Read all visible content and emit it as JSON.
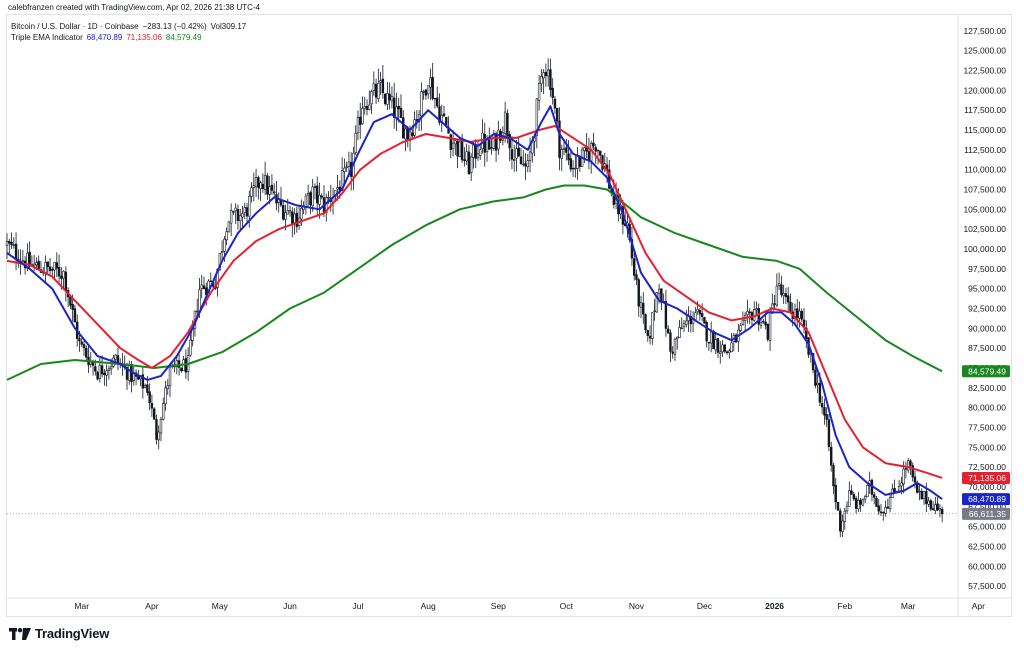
{
  "creator_text": "calebfranzen created with TradingView.com, Apr 02, 2026 21:38 UTC-4",
  "legend": {
    "symbol": "Bitcoin / U.S. Dollar · 1D · Coinbase",
    "change": "−283.13 (−0.42%)",
    "volume": "Vol309.17",
    "indicator_name": "Triple EMA Indicator",
    "ema_fast": "68,470.89",
    "ema_mid": "71,135.06",
    "ema_slow": "84,579.49"
  },
  "brand": {
    "name": "TradingView"
  },
  "colors": {
    "ema_fast": "#1b24c7",
    "ema_mid": "#e5202f",
    "ema_slow": "#17871e",
    "candle": "#131722",
    "last_price": "#787b86"
  },
  "chart_data": {
    "type": "candlestick",
    "title": "Bitcoin / U.S. Dollar · 1D · Coinbase",
    "ylim": [
      56000,
      129500
    ],
    "y_ticks": [
      "127,500.00",
      "125,000.00",
      "122,500.00",
      "120,000.00",
      "117,500.00",
      "115,000.00",
      "112,500.00",
      "110,000.00",
      "107,500.00",
      "105,000.00",
      "102,500.00",
      "100,000.00",
      "97,500.00",
      "95,000.00",
      "92,500.00",
      "90,000.00",
      "87,500.00",
      "85,000.00",
      "82,500.00",
      "80,000.00",
      "77,500.00",
      "75,000.00",
      "72,500.00",
      "70,000.00",
      "67,500.00",
      "65,000.00",
      "62,500.00",
      "60,000.00",
      "57,500.00"
    ],
    "x_ticks": [
      "Mar",
      "Apr",
      "May",
      "Jun",
      "Jul",
      "Aug",
      "Sep",
      "Oct",
      "Nov",
      "Dec",
      "2026",
      "Feb",
      "Mar",
      "Apr"
    ],
    "x_tick_bold": "2026",
    "x_range_days": [
      0,
      413
    ],
    "x_tick_days": [
      33,
      64,
      94,
      125,
      155,
      186,
      217,
      247,
      278,
      308,
      339,
      370,
      398,
      429
    ],
    "price_labels": [
      {
        "text": "84,579.49",
        "value": 84579.49,
        "color": "#17871e"
      },
      {
        "text": "71,135.06",
        "value": 71135.06,
        "color": "#e5202f"
      },
      {
        "text": "68,470.89",
        "value": 68470.89,
        "color": "#1b24c7"
      },
      {
        "text": "66,611.35",
        "value": 66611.35,
        "color": "#787b86"
      }
    ],
    "last_price": 66611.35,
    "price_anchors": [
      [
        0,
        100500
      ],
      [
        10,
        98000
      ],
      [
        25,
        97000
      ],
      [
        32,
        88000
      ],
      [
        40,
        84500
      ],
      [
        48,
        86000
      ],
      [
        55,
        84000
      ],
      [
        62,
        82500
      ],
      [
        66,
        76500
      ],
      [
        72,
        84500
      ],
      [
        80,
        85500
      ],
      [
        85,
        95000
      ],
      [
        92,
        96000
      ],
      [
        97,
        103500
      ],
      [
        105,
        104500
      ],
      [
        112,
        109000
      ],
      [
        120,
        105500
      ],
      [
        128,
        104000
      ],
      [
        135,
        107000
      ],
      [
        140,
        105500
      ],
      [
        148,
        108500
      ],
      [
        152,
        110000
      ],
      [
        157,
        118500
      ],
      [
        165,
        120000
      ],
      [
        172,
        117000
      ],
      [
        177,
        114500
      ],
      [
        182,
        117500
      ],
      [
        186,
        122000
      ],
      [
        190,
        118000
      ],
      [
        196,
        114000
      ],
      [
        204,
        110500
      ],
      [
        209,
        113500
      ],
      [
        214,
        112500
      ],
      [
        220,
        116500
      ],
      [
        224,
        111500
      ],
      [
        230,
        110000
      ],
      [
        234,
        117500
      ],
      [
        237,
        123500
      ],
      [
        240,
        121500
      ],
      [
        244,
        113000
      ],
      [
        250,
        110500
      ],
      [
        255,
        111500
      ],
      [
        260,
        113500
      ],
      [
        264,
        110500
      ],
      [
        268,
        106000
      ],
      [
        274,
        103000
      ],
      [
        278,
        95000
      ],
      [
        283,
        88000
      ],
      [
        288,
        96000
      ],
      [
        293,
        87000
      ],
      [
        298,
        90000
      ],
      [
        304,
        92000
      ],
      [
        310,
        89000
      ],
      [
        318,
        87000
      ],
      [
        325,
        90000
      ],
      [
        330,
        92500
      ],
      [
        336,
        89500
      ],
      [
        340,
        95500
      ],
      [
        345,
        92500
      ],
      [
        350,
        91500
      ],
      [
        354,
        87000
      ],
      [
        359,
        81500
      ],
      [
        362,
        77500
      ],
      [
        365,
        70000
      ],
      [
        368,
        65000
      ],
      [
        372,
        69000
      ],
      [
        376,
        67500
      ],
      [
        381,
        70000
      ],
      [
        386,
        67000
      ],
      [
        390,
        68500
      ],
      [
        394,
        70500
      ],
      [
        398,
        73000
      ],
      [
        402,
        69000
      ],
      [
        406,
        68500
      ],
      [
        410,
        67500
      ],
      [
        413,
        66611
      ]
    ],
    "ema_fast_path": [
      [
        0,
        99500
      ],
      [
        10,
        97500
      ],
      [
        20,
        95000
      ],
      [
        30,
        90000
      ],
      [
        40,
        86500
      ],
      [
        50,
        85500
      ],
      [
        55,
        84500
      ],
      [
        62,
        83500
      ],
      [
        68,
        84000
      ],
      [
        75,
        86500
      ],
      [
        82,
        90000
      ],
      [
        88,
        94000
      ],
      [
        95,
        98500
      ],
      [
        102,
        102000
      ],
      [
        110,
        104500
      ],
      [
        118,
        106500
      ],
      [
        128,
        105500
      ],
      [
        138,
        105000
      ],
      [
        148,
        107500
      ],
      [
        155,
        112000
      ],
      [
        162,
        116000
      ],
      [
        170,
        117000
      ],
      [
        178,
        115000
      ],
      [
        186,
        117500
      ],
      [
        192,
        116000
      ],
      [
        200,
        114000
      ],
      [
        208,
        113000
      ],
      [
        215,
        114500
      ],
      [
        222,
        114000
      ],
      [
        230,
        112500
      ],
      [
        236,
        116000
      ],
      [
        240,
        118000
      ],
      [
        244,
        114500
      ],
      [
        250,
        112000
      ],
      [
        258,
        111000
      ],
      [
        265,
        109000
      ],
      [
        272,
        104500
      ],
      [
        280,
        97000
      ],
      [
        288,
        93500
      ],
      [
        296,
        92500
      ],
      [
        304,
        91000
      ],
      [
        312,
        89500
      ],
      [
        320,
        88500
      ],
      [
        328,
        90000
      ],
      [
        336,
        92000
      ],
      [
        342,
        92000
      ],
      [
        348,
        90500
      ],
      [
        354,
        88000
      ],
      [
        360,
        83000
      ],
      [
        366,
        76500
      ],
      [
        372,
        72500
      ],
      [
        380,
        70500
      ],
      [
        388,
        69000
      ],
      [
        396,
        69500
      ],
      [
        402,
        70500
      ],
      [
        408,
        69500
      ],
      [
        413,
        68470.89
      ]
    ],
    "ema_mid_path": [
      [
        0,
        98500
      ],
      [
        10,
        98000
      ],
      [
        20,
        96500
      ],
      [
        30,
        93500
      ],
      [
        40,
        90500
      ],
      [
        50,
        87500
      ],
      [
        58,
        86000
      ],
      [
        64,
        85000
      ],
      [
        72,
        86500
      ],
      [
        80,
        89500
      ],
      [
        90,
        94500
      ],
      [
        100,
        98500
      ],
      [
        110,
        101000
      ],
      [
        120,
        102500
      ],
      [
        130,
        103500
      ],
      [
        140,
        104500
      ],
      [
        148,
        107000
      ],
      [
        156,
        110000
      ],
      [
        165,
        112000
      ],
      [
        175,
        113500
      ],
      [
        185,
        114500
      ],
      [
        195,
        114000
      ],
      [
        205,
        113500
      ],
      [
        215,
        114000
      ],
      [
        225,
        114000
      ],
      [
        235,
        115000
      ],
      [
        242,
        115500
      ],
      [
        250,
        114000
      ],
      [
        258,
        112500
      ],
      [
        266,
        109500
      ],
      [
        274,
        104500
      ],
      [
        282,
        99500
      ],
      [
        290,
        96000
      ],
      [
        300,
        94000
      ],
      [
        310,
        92000
      ],
      [
        320,
        91000
      ],
      [
        330,
        91500
      ],
      [
        338,
        92500
      ],
      [
        346,
        92000
      ],
      [
        354,
        89500
      ],
      [
        362,
        84000
      ],
      [
        370,
        78500
      ],
      [
        378,
        75000
      ],
      [
        388,
        73000
      ],
      [
        398,
        72500
      ],
      [
        406,
        71800
      ],
      [
        413,
        71135.06
      ]
    ],
    "ema_slow_path": [
      [
        0,
        83500
      ],
      [
        15,
        85500
      ],
      [
        30,
        86000
      ],
      [
        50,
        85500
      ],
      [
        65,
        85000
      ],
      [
        80,
        85500
      ],
      [
        95,
        87000
      ],
      [
        110,
        89500
      ],
      [
        125,
        92500
      ],
      [
        140,
        94500
      ],
      [
        155,
        97500
      ],
      [
        170,
        100500
      ],
      [
        185,
        103000
      ],
      [
        200,
        105000
      ],
      [
        215,
        106000
      ],
      [
        228,
        106500
      ],
      [
        238,
        107500
      ],
      [
        246,
        108000
      ],
      [
        255,
        108000
      ],
      [
        265,
        107500
      ],
      [
        280,
        104000
      ],
      [
        295,
        102000
      ],
      [
        310,
        100500
      ],
      [
        325,
        99000
      ],
      [
        340,
        98500
      ],
      [
        350,
        97500
      ],
      [
        362,
        94500
      ],
      [
        375,
        91500
      ],
      [
        388,
        88500
      ],
      [
        400,
        86500
      ],
      [
        413,
        84579.49
      ]
    ]
  }
}
